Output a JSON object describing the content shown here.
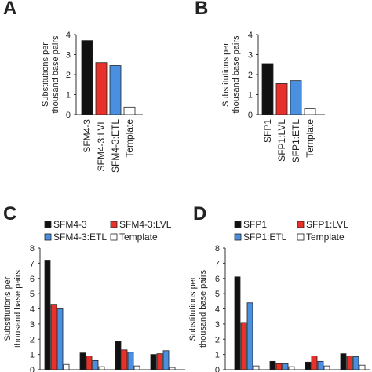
{
  "chart_data": [
    {
      "panel": "A",
      "type": "bar",
      "ylabel": "Substitutions per thousand base pairs",
      "ylim": [
        0,
        4
      ],
      "yticks": [
        "0",
        "1",
        "2",
        "3",
        "4"
      ],
      "categories": [
        "SFM4-3",
        "SFM4-3:LVL",
        "SFM4-3:ETL",
        "Template"
      ],
      "values": [
        3.7,
        2.6,
        2.45,
        0.38
      ],
      "colors": [
        "#111111",
        "#e8312a",
        "#4a8fe0",
        "#ffffff"
      ]
    },
    {
      "panel": "B",
      "type": "bar",
      "ylabel": "Substitutions per thousand base pairs",
      "ylim": [
        0,
        4
      ],
      "yticks": [
        "0",
        "1",
        "2",
        "3",
        "4"
      ],
      "categories": [
        "SFP1",
        "SFP1:LVL",
        "SFP1:ETL",
        "Template"
      ],
      "values": [
        2.55,
        1.55,
        1.7,
        0.3
      ],
      "colors": [
        "#111111",
        "#e8312a",
        "#4a8fe0",
        "#ffffff"
      ]
    },
    {
      "panel": "C",
      "type": "bar",
      "ylabel": "Substitutions per thousand base pairs",
      "ylim": [
        0,
        8
      ],
      "yticks": [
        "0",
        "1",
        "2",
        "3",
        "4",
        "5",
        "6",
        "7",
        "8"
      ],
      "series": [
        {
          "name": "SFM4-3",
          "color": "#111111",
          "values": [
            7.2,
            1.1,
            1.85,
            1.0
          ]
        },
        {
          "name": "SFM4-3:LVL",
          "color": "#e8312a",
          "values": [
            4.3,
            0.9,
            1.3,
            1.05
          ]
        },
        {
          "name": "SFM4-3:ETL",
          "color": "#4a8fe0",
          "values": [
            4.0,
            0.6,
            1.15,
            1.25
          ]
        },
        {
          "name": "Template",
          "color": "#ffffff",
          "values": [
            0.35,
            0.2,
            0.25,
            0.15
          ]
        }
      ]
    },
    {
      "panel": "D",
      "type": "bar",
      "ylabel": "Substitutions per thousand base pairs",
      "ylim": [
        0,
        8
      ],
      "yticks": [
        "0",
        "1",
        "2",
        "3",
        "4",
        "5",
        "6",
        "7",
        "8"
      ],
      "series": [
        {
          "name": "SFP1",
          "color": "#111111",
          "values": [
            6.1,
            0.55,
            0.5,
            1.05
          ]
        },
        {
          "name": "SFP1:LVL",
          "color": "#e8312a",
          "values": [
            3.1,
            0.4,
            0.9,
            0.9
          ]
        },
        {
          "name": "SFP1:ETL",
          "color": "#4a8fe0",
          "values": [
            4.4,
            0.4,
            0.55,
            0.85
          ]
        },
        {
          "name": "Template",
          "color": "#ffffff",
          "values": [
            0.25,
            0.2,
            0.25,
            0.3
          ]
        }
      ]
    }
  ]
}
